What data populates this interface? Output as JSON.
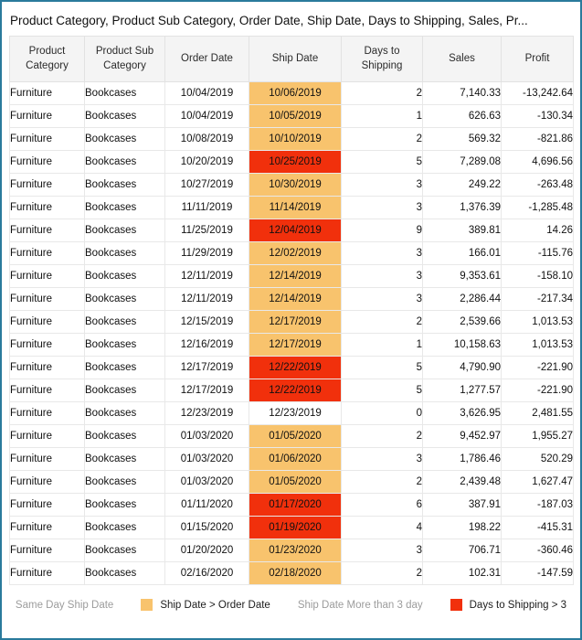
{
  "colors": {
    "frame_border": "#2a7a9c",
    "header_background": "#f4f4f4",
    "grid_line": "#e8e8e8",
    "highlight_orange": "#f8c36d",
    "highlight_red": "#f1300c",
    "muted_text": "#9c9c9c"
  },
  "chart_data": {
    "type": "table",
    "title": "Product Category, Product Sub Category, Order Date, Ship Date, Days to Shipping, Sales, Pr...",
    "columns": [
      "Product Category",
      "Product Sub Category",
      "Order Date",
      "Ship Date",
      "Days to Shipping",
      "Sales",
      "Profit"
    ],
    "rows": [
      {
        "category": "Furniture",
        "sub": "Bookcases",
        "order": "10/04/2019",
        "ship": "10/06/2019",
        "days": "2",
        "sales": "7,140.33",
        "profit": "-13,242.64",
        "hl": "orange"
      },
      {
        "category": "Furniture",
        "sub": "Bookcases",
        "order": "10/04/2019",
        "ship": "10/05/2019",
        "days": "1",
        "sales": "626.63",
        "profit": "-130.34",
        "hl": "orange"
      },
      {
        "category": "Furniture",
        "sub": "Bookcases",
        "order": "10/08/2019",
        "ship": "10/10/2019",
        "days": "2",
        "sales": "569.32",
        "profit": "-821.86",
        "hl": "orange"
      },
      {
        "category": "Furniture",
        "sub": "Bookcases",
        "order": "10/20/2019",
        "ship": "10/25/2019",
        "days": "5",
        "sales": "7,289.08",
        "profit": "4,696.56",
        "hl": "red"
      },
      {
        "category": "Furniture",
        "sub": "Bookcases",
        "order": "10/27/2019",
        "ship": "10/30/2019",
        "days": "3",
        "sales": "249.22",
        "profit": "-263.48",
        "hl": "orange"
      },
      {
        "category": "Furniture",
        "sub": "Bookcases",
        "order": "11/11/2019",
        "ship": "11/14/2019",
        "days": "3",
        "sales": "1,376.39",
        "profit": "-1,285.48",
        "hl": "orange"
      },
      {
        "category": "Furniture",
        "sub": "Bookcases",
        "order": "11/25/2019",
        "ship": "12/04/2019",
        "days": "9",
        "sales": "389.81",
        "profit": "14.26",
        "hl": "red"
      },
      {
        "category": "Furniture",
        "sub": "Bookcases",
        "order": "11/29/2019",
        "ship": "12/02/2019",
        "days": "3",
        "sales": "166.01",
        "profit": "-115.76",
        "hl": "orange"
      },
      {
        "category": "Furniture",
        "sub": "Bookcases",
        "order": "12/11/2019",
        "ship": "12/14/2019",
        "days": "3",
        "sales": "9,353.61",
        "profit": "-158.10",
        "hl": "orange"
      },
      {
        "category": "Furniture",
        "sub": "Bookcases",
        "order": "12/11/2019",
        "ship": "12/14/2019",
        "days": "3",
        "sales": "2,286.44",
        "profit": "-217.34",
        "hl": "orange"
      },
      {
        "category": "Furniture",
        "sub": "Bookcases",
        "order": "12/15/2019",
        "ship": "12/17/2019",
        "days": "2",
        "sales": "2,539.66",
        "profit": "1,013.53",
        "hl": "orange"
      },
      {
        "category": "Furniture",
        "sub": "Bookcases",
        "order": "12/16/2019",
        "ship": "12/17/2019",
        "days": "1",
        "sales": "10,158.63",
        "profit": "1,013.53",
        "hl": "orange"
      },
      {
        "category": "Furniture",
        "sub": "Bookcases",
        "order": "12/17/2019",
        "ship": "12/22/2019",
        "days": "5",
        "sales": "4,790.90",
        "profit": "-221.90",
        "hl": "red"
      },
      {
        "category": "Furniture",
        "sub": "Bookcases",
        "order": "12/17/2019",
        "ship": "12/22/2019",
        "days": "5",
        "sales": "1,277.57",
        "profit": "-221.90",
        "hl": "red"
      },
      {
        "category": "Furniture",
        "sub": "Bookcases",
        "order": "12/23/2019",
        "ship": "12/23/2019",
        "days": "0",
        "sales": "3,626.95",
        "profit": "2,481.55",
        "hl": "none"
      },
      {
        "category": "Furniture",
        "sub": "Bookcases",
        "order": "01/03/2020",
        "ship": "01/05/2020",
        "days": "2",
        "sales": "9,452.97",
        "profit": "1,955.27",
        "hl": "orange"
      },
      {
        "category": "Furniture",
        "sub": "Bookcases",
        "order": "01/03/2020",
        "ship": "01/06/2020",
        "days": "3",
        "sales": "1,786.46",
        "profit": "520.29",
        "hl": "orange"
      },
      {
        "category": "Furniture",
        "sub": "Bookcases",
        "order": "01/03/2020",
        "ship": "01/05/2020",
        "days": "2",
        "sales": "2,439.48",
        "profit": "1,627.47",
        "hl": "orange"
      },
      {
        "category": "Furniture",
        "sub": "Bookcases",
        "order": "01/11/2020",
        "ship": "01/17/2020",
        "days": "6",
        "sales": "387.91",
        "profit": "-187.03",
        "hl": "red"
      },
      {
        "category": "Furniture",
        "sub": "Bookcases",
        "order": "01/15/2020",
        "ship": "01/19/2020",
        "days": "4",
        "sales": "198.22",
        "profit": "-415.31",
        "hl": "red"
      },
      {
        "category": "Furniture",
        "sub": "Bookcases",
        "order": "01/20/2020",
        "ship": "01/23/2020",
        "days": "3",
        "sales": "706.71",
        "profit": "-360.46",
        "hl": "orange"
      },
      {
        "category": "Furniture",
        "sub": "Bookcases",
        "order": "02/16/2020",
        "ship": "02/18/2020",
        "days": "2",
        "sales": "102.31",
        "profit": "-147.59",
        "hl": "orange"
      }
    ],
    "legend": [
      {
        "label": "Same Day Ship Date",
        "swatch": "none",
        "muted": true
      },
      {
        "label": "Ship Date > Order Date",
        "swatch": "orange",
        "muted": false
      },
      {
        "label": "Ship Date More than 3 day",
        "swatch": "none",
        "muted": true
      },
      {
        "label": "Days to Shipping > 3",
        "swatch": "red",
        "muted": false
      }
    ]
  }
}
